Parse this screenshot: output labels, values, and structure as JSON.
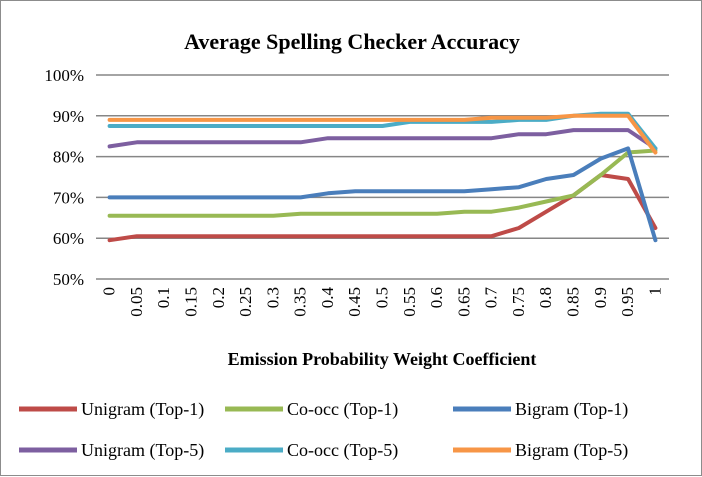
{
  "chart_data": {
    "type": "line",
    "title": "Average Spelling Checker Accuracy",
    "xlabel": "Emission Probability Weight Coefficient",
    "ylabel": "",
    "x": [
      "0",
      "0.05",
      "0.1",
      "0.15",
      "0.2",
      "0.25",
      "0.3",
      "0.35",
      "0.4",
      "0.45",
      "0.5",
      "0.55",
      "0.6",
      "0.65",
      "0.7",
      "0.75",
      "0.8",
      "0.85",
      "0.9",
      "0.95",
      "1"
    ],
    "ylim": [
      50,
      100
    ],
    "yticks": [
      50,
      60,
      70,
      80,
      90,
      100
    ],
    "ytick_labels": [
      "50%",
      "60%",
      "70%",
      "80%",
      "90%",
      "100%"
    ],
    "grid": true,
    "legend_position": "bottom",
    "series": [
      {
        "name": "Unigram (Top-1)",
        "color": "#BE4B48",
        "values": [
          59.5,
          60.5,
          60.5,
          60.5,
          60.5,
          60.5,
          60.5,
          60.5,
          60.5,
          60.5,
          60.5,
          60.5,
          60.5,
          60.5,
          60.5,
          62.5,
          66.5,
          70.5,
          75.5,
          74.5,
          62.5
        ]
      },
      {
        "name": "Co-occ (Top-1)",
        "color": "#98B954",
        "values": [
          65.5,
          65.5,
          65.5,
          65.5,
          65.5,
          65.5,
          65.5,
          66,
          66,
          66,
          66,
          66,
          66,
          66.5,
          66.5,
          67.5,
          69,
          70.5,
          75.5,
          81,
          81.5
        ]
      },
      {
        "name": "Bigram (Top-1)",
        "color": "#4A7EBB",
        "values": [
          70,
          70,
          70,
          70,
          70,
          70,
          70,
          70,
          71,
          71.5,
          71.5,
          71.5,
          71.5,
          71.5,
          72,
          72.5,
          74.5,
          75.5,
          79.5,
          82,
          59.5
        ]
      },
      {
        "name": "Unigram (Top-5)",
        "color": "#7D5FA0",
        "values": [
          82.5,
          83.5,
          83.5,
          83.5,
          83.5,
          83.5,
          83.5,
          83.5,
          84.5,
          84.5,
          84.5,
          84.5,
          84.5,
          84.5,
          84.5,
          85.5,
          85.5,
          86.5,
          86.5,
          86.5,
          82
        ]
      },
      {
        "name": "Co-occ (Top-5)",
        "color": "#4BACC6",
        "values": [
          87.5,
          87.5,
          87.5,
          87.5,
          87.5,
          87.5,
          87.5,
          87.5,
          87.5,
          87.5,
          87.5,
          88.5,
          88.5,
          88.5,
          88.5,
          89,
          89,
          90,
          90.5,
          90.5,
          82
        ]
      },
      {
        "name": "Bigram (Top-5)",
        "color": "#F79646",
        "values": [
          89,
          89,
          89,
          89,
          89,
          89,
          89,
          89,
          89,
          89,
          89,
          89,
          89,
          89,
          89.5,
          89.5,
          89.5,
          90,
          90,
          90,
          81
        ]
      }
    ]
  }
}
